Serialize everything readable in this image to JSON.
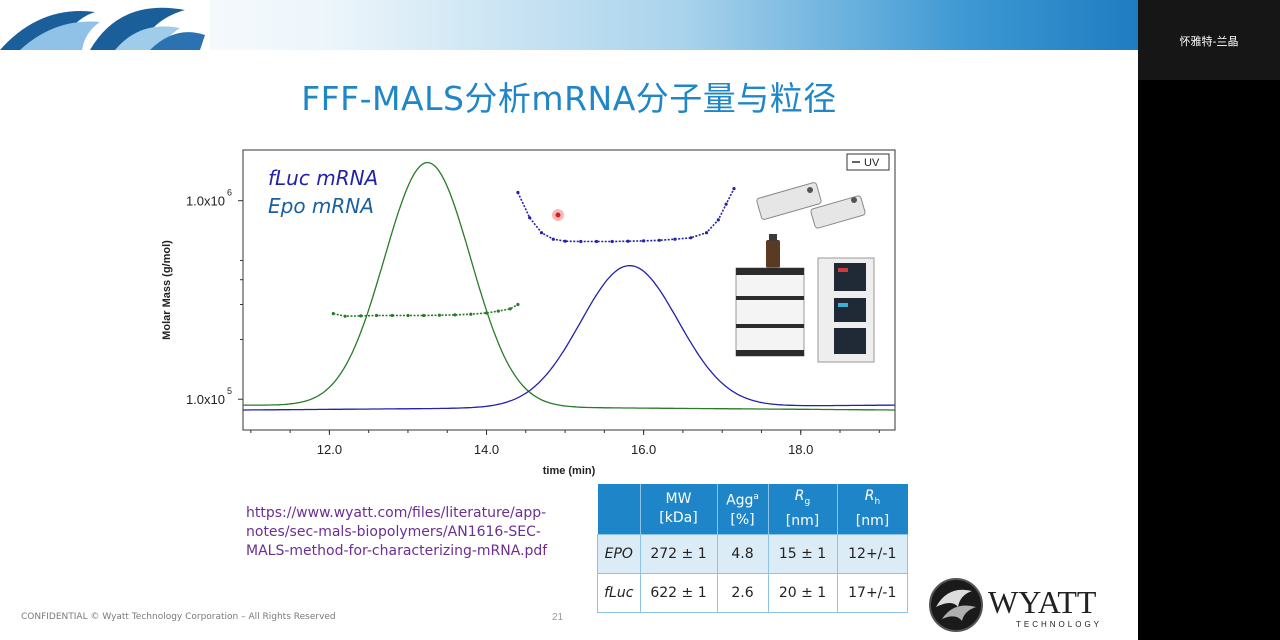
{
  "slide": {
    "title": "FFF-MALS分析mRNA分子量与粒径",
    "footer": "CONFIDENTIAL   © Wyatt Technology Corporation – All Rights Reserved",
    "page_number": "21",
    "reference_link": [
      "https://www.wyatt.com/files/literature/app-",
      "notes/sec-mals-biopolymers/AN1616-SEC-",
      "MALS-method-for-characterizing-mRNA.pdf"
    ]
  },
  "logo": {
    "main": "WYATT",
    "sub": "TECHNOLOGY"
  },
  "participant": {
    "name": "怀雅特-兰晶"
  },
  "colors": {
    "title": "#1f86c8",
    "fluc": "#2a7a2a",
    "epo": "#2222aa",
    "table_header": "#1e86c8",
    "link": "#6b2f91"
  },
  "chart_data": {
    "type": "line",
    "xlabel": "time (min)",
    "ylabel": "Molar Mass (g/mol)",
    "xlim": [
      10.9,
      19.2
    ],
    "y_scale": "log",
    "ylim": [
      70000,
      1800000
    ],
    "x_ticks": [
      {
        "value": 12,
        "label": "12.0"
      },
      {
        "value": 14,
        "label": "14.0"
      },
      {
        "value": 16,
        "label": "16.0"
      },
      {
        "value": 18,
        "label": "18.0"
      }
    ],
    "y_ticks": [
      {
        "value": 100000,
        "label": "1.0x10",
        "exp": "5"
      },
      {
        "value": 1000000,
        "label": "1.0x10",
        "exp": "6"
      }
    ],
    "legend": "UV",
    "annotations": [
      "fLuc mRNA",
      "Epo mRNA"
    ],
    "series": [
      {
        "name": "fLuc mRNA",
        "kind": "uv",
        "shape": "gaussian",
        "center": 13.25,
        "sigma": 0.55,
        "baseline_left": 0.02,
        "baseline_right": 0.0,
        "peak": 1.0
      },
      {
        "name": "Epo mRNA",
        "kind": "uv",
        "shape": "gaussian",
        "center": 15.82,
        "sigma": 0.62,
        "baseline_left": 0.0,
        "baseline_right": 0.02,
        "peak": 0.58
      },
      {
        "name": "fLuc mRNA",
        "kind": "molar_mass",
        "x": [
          12.05,
          12.2,
          12.4,
          12.6,
          12.8,
          13.0,
          13.2,
          13.4,
          13.6,
          13.8,
          14.0,
          14.15,
          14.3,
          14.4
        ],
        "y": [
          270000,
          262000,
          263000,
          264000,
          264000,
          264000,
          264000,
          265000,
          266000,
          268000,
          272000,
          278000,
          285000,
          300000
        ]
      },
      {
        "name": "Epo mRNA",
        "kind": "molar_mass",
        "x": [
          14.4,
          14.55,
          14.7,
          14.85,
          15.0,
          15.2,
          15.4,
          15.6,
          15.8,
          16.0,
          16.2,
          16.4,
          16.6,
          16.8,
          16.95,
          17.05,
          17.15
        ],
        "y": [
          1100000,
          820000,
          690000,
          640000,
          625000,
          623000,
          623000,
          623000,
          625000,
          627000,
          632000,
          640000,
          650000,
          690000,
          800000,
          960000,
          1150000
        ]
      }
    ]
  },
  "results_table": {
    "headers": [
      {
        "line1": "",
        "line2": ""
      },
      {
        "line1": "MW",
        "line2": "[kDa]"
      },
      {
        "line1": "Agg",
        "sup": "a",
        "line2": "[%]"
      },
      {
        "line1": "R",
        "sub": "g",
        "line2": "[nm]"
      },
      {
        "line1": "R",
        "sub": "h",
        "line2": "[nm]"
      }
    ],
    "rows": [
      {
        "label": "EPO",
        "values": [
          "272 ± 1",
          "4.8",
          "15 ± 1",
          "12+/-1"
        ]
      },
      {
        "label": "fLuc",
        "values": [
          "622 ± 1",
          "2.6",
          "20 ± 1",
          "17+/-1"
        ]
      }
    ]
  }
}
